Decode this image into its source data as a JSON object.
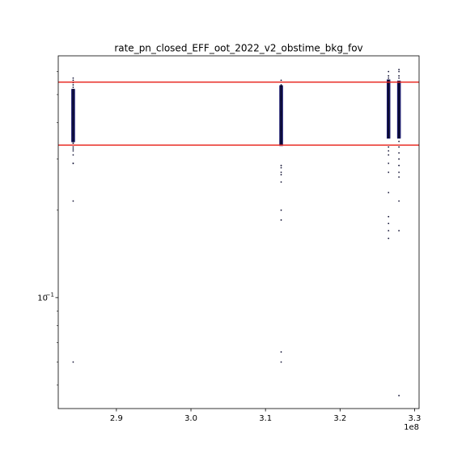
{
  "chart_data": {
    "type": "scatter",
    "title": "rate_pn_closed_EFF_oot_2022_v2_obstime_bkg_fov",
    "xlabel": "",
    "ylabel": "",
    "x_offset_label": "1e8",
    "x_range": [
      282200000,
      330600000
    ],
    "y_range": [
      0.0415,
      0.68
    ],
    "y_scale": "log",
    "grid": false,
    "x_ticks": [
      {
        "value": 290000000,
        "label": "2.9"
      },
      {
        "value": 300000000,
        "label": "3.0"
      },
      {
        "value": 310000000,
        "label": "3.1"
      },
      {
        "value": 320000000,
        "label": "3.2"
      },
      {
        "value": 330000000,
        "label": "3.3"
      }
    ],
    "y_major_ticks": [
      {
        "value": 0.1,
        "base": "10",
        "exponent": "−1"
      }
    ],
    "y_minor_ticks": [
      0.05,
      0.06,
      0.07,
      0.08,
      0.09,
      0.2,
      0.3,
      0.4,
      0.5,
      0.6
    ],
    "hlines": [
      {
        "value": 0.552,
        "color": "#e8261f"
      },
      {
        "value": 0.335,
        "color": "#e8261f"
      }
    ],
    "clusters": [
      {
        "x": 284200000,
        "band": [
          0.345,
          0.52
        ],
        "points": [
          0.57,
          0.56,
          0.55,
          0.54,
          0.53,
          0.34,
          0.33,
          0.325,
          0.32,
          0.31,
          0.29,
          0.29,
          0.215,
          0.06
        ]
      },
      {
        "x": 312100000,
        "band": [
          0.335,
          0.535
        ],
        "points": [
          0.56,
          0.54,
          0.285,
          0.28,
          0.27,
          0.265,
          0.25,
          0.2,
          0.185,
          0.065,
          0.06
        ]
      },
      {
        "x": 326500000,
        "band": [
          0.355,
          0.56
        ],
        "points": [
          0.6,
          0.58,
          0.57,
          0.33,
          0.32,
          0.31,
          0.29,
          0.27,
          0.23,
          0.19,
          0.18,
          0.17,
          0.16
        ]
      },
      {
        "x": 327900000,
        "band": [
          0.355,
          0.555
        ],
        "points": [
          0.61,
          0.6,
          0.58,
          0.57,
          0.345,
          0.33,
          0.315,
          0.3,
          0.285,
          0.27,
          0.26,
          0.215,
          0.17,
          0.046
        ]
      }
    ]
  }
}
